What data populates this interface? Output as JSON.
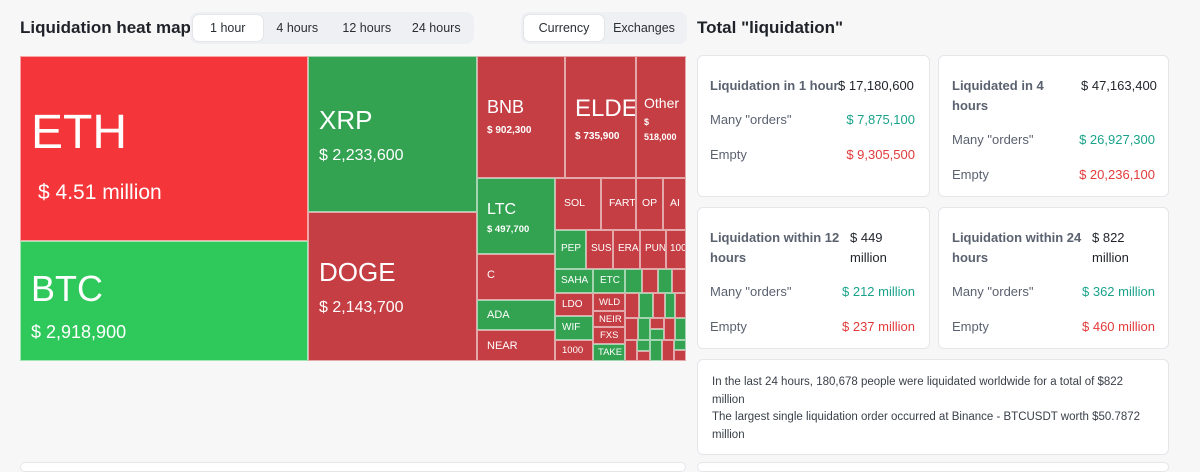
{
  "header": {
    "title": "Liquidation heat map",
    "time_tabs": [
      "1 hour",
      "4 hours",
      "12 hours",
      "24 hours"
    ],
    "selected_time": "1 hour",
    "view_tabs": [
      "Currency",
      "Exchanges"
    ],
    "selected_view": "Currency",
    "total_title": "Total \"liquidation\""
  },
  "heatmap": {
    "eth": {
      "symbol": "ETH",
      "amount": "$ 4.51 million"
    },
    "btc": {
      "symbol": "BTC",
      "amount": "$ 2,918,900"
    },
    "xrp": {
      "symbol": "XRP",
      "amount": "$ 2,233,600"
    },
    "doge": {
      "symbol": "DOGE",
      "amount": "$ 2,143,700"
    },
    "bnb": {
      "symbol": "BNB",
      "amount": "$ 902,300"
    },
    "elde": {
      "symbol": "ELDE",
      "amount": "$ 735,900"
    },
    "other": {
      "symbol": "Other",
      "amount": "$ 518,000"
    },
    "ltc": {
      "symbol": "LTC",
      "amount": "$ 497,700"
    },
    "c": {
      "symbol": "C"
    },
    "ada": {
      "symbol": "ADA"
    },
    "near": {
      "symbol": "NEAR"
    },
    "sol": {
      "symbol": "SOL"
    },
    "fart": {
      "symbol": "FART"
    },
    "op": {
      "symbol": "OP"
    },
    "ai": {
      "symbol": "AI"
    },
    "pep": {
      "symbol": "PEP"
    },
    "sus": {
      "symbol": "SUS"
    },
    "era": {
      "symbol": "ERA"
    },
    "pun": {
      "symbol": "PUN"
    },
    "k100": {
      "symbol": "100"
    },
    "saha": {
      "symbol": "SAHA"
    },
    "etc": {
      "symbol": "ETC"
    },
    "ldo": {
      "symbol": "LDO"
    },
    "wld": {
      "symbol": "WLD"
    },
    "neir": {
      "symbol": "NEIR"
    },
    "wif": {
      "symbol": "WIF"
    },
    "fxs": {
      "symbol": "FXS"
    },
    "k1000": {
      "symbol": "1000"
    },
    "take": {
      "symbol": "TAKE"
    }
  },
  "cards": {
    "h1": {
      "title": "Liquidation in 1 hour",
      "total": "$ 17,180,600",
      "many_label": "Many \"orders\"",
      "many": "$ 7,875,100",
      "empty_label": "Empty",
      "empty": "$ 9,305,500"
    },
    "h4": {
      "title": "Liquidated in 4 hours",
      "total": "$ 47,163,400",
      "many_label": "Many \"orders\"",
      "many": "$ 26,927,300",
      "empty_label": "Empty",
      "empty": "$ 20,236,100"
    },
    "h12": {
      "title": "Liquidation within 12 hours",
      "total": "$ 449 million",
      "many_label": "Many \"orders\"",
      "many": "$ 212 million",
      "empty_label": "Empty",
      "empty": "$ 237 million"
    },
    "h24": {
      "title": "Liquidation within 24 hours",
      "total": "$ 822 million",
      "many_label": "Many \"orders\"",
      "many": "$ 362 million",
      "empty_label": "Empty",
      "empty": "$ 460 million"
    }
  },
  "summary": {
    "line1": "In the last 24 hours, 180,678 people were liquidated worldwide for a total of $822 million",
    "line2": "The largest single liquidation order occurred at Binance - BTCUSDT worth $50.7872 million"
  },
  "colors": {
    "red": "#f4363a",
    "dark_red": "#c53e44",
    "green": "#2fc85b",
    "dark_green": "#33a352",
    "positive": "#1aa38a",
    "negative": "#e23b3b"
  }
}
